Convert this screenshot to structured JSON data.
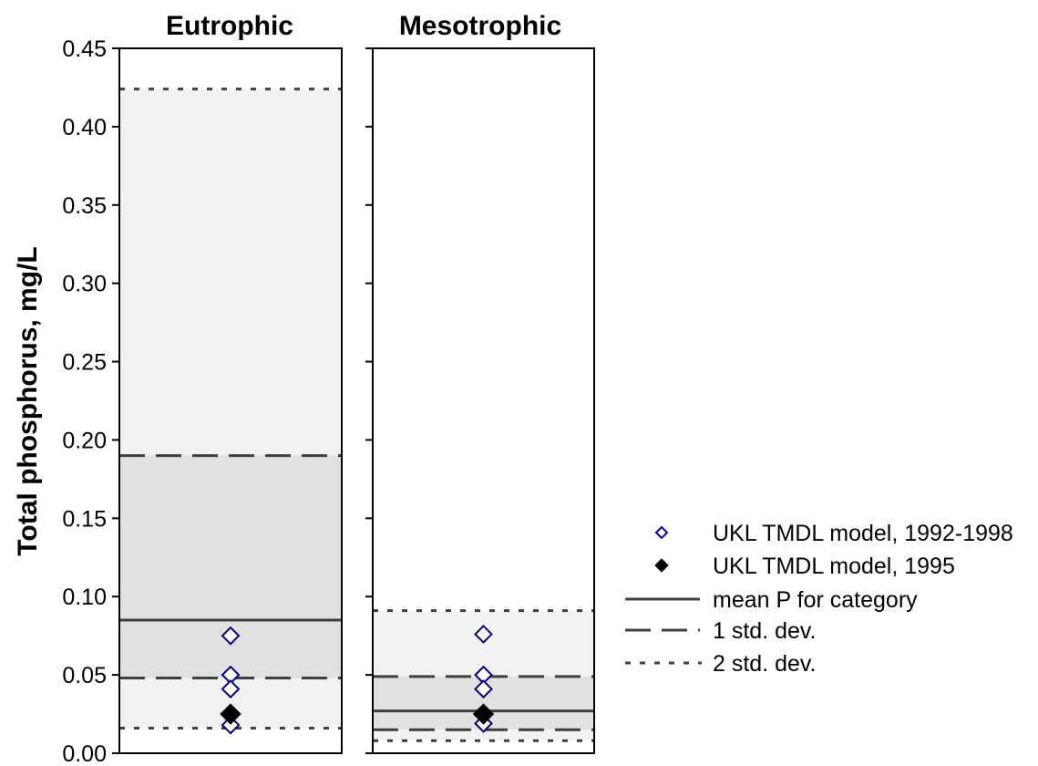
{
  "chart_data": {
    "type": "scatter",
    "ylabel": "Total phosphorus, mg/L",
    "ylim": [
      0,
      0.45
    ],
    "yticks": [
      "0.00",
      "0.05",
      "0.10",
      "0.15",
      "0.20",
      "0.25",
      "0.30",
      "0.35",
      "0.40",
      "0.45"
    ],
    "grid": false,
    "legend_position": "right",
    "colors": {
      "band_1sd": "#e1e1e1",
      "band_2sd": "#f2f2f2",
      "lines": "#3f3f3f",
      "open_marker": "#000080",
      "filled_marker": "#000000"
    },
    "panels": [
      {
        "title": "Eutrophic",
        "mean": 0.085,
        "sd1": [
          0.048,
          0.19
        ],
        "sd2": [
          0.016,
          0.424
        ],
        "points_1992_1998": [
          0.075,
          0.05,
          0.041,
          0.025,
          0.018
        ],
        "point_1995": 0.025
      },
      {
        "title": "Mesotrophic",
        "mean": 0.027,
        "sd1": [
          0.015,
          0.049
        ],
        "sd2": [
          0.008,
          0.091
        ],
        "points_1992_1998": [
          0.076,
          0.05,
          0.041,
          0.025,
          0.019
        ],
        "point_1995": 0.025
      }
    ],
    "legend": [
      {
        "label": "UKL TMDL model, 1992-1998",
        "symbol": "open-diamond"
      },
      {
        "label": "UKL TMDL model, 1995",
        "symbol": "filled-diamond"
      },
      {
        "label": "mean P for category",
        "symbol": "solid-line"
      },
      {
        "label": "1 std. dev.",
        "symbol": "dashed-line"
      },
      {
        "label": "2 std. dev.",
        "symbol": "dotted-line"
      }
    ]
  }
}
